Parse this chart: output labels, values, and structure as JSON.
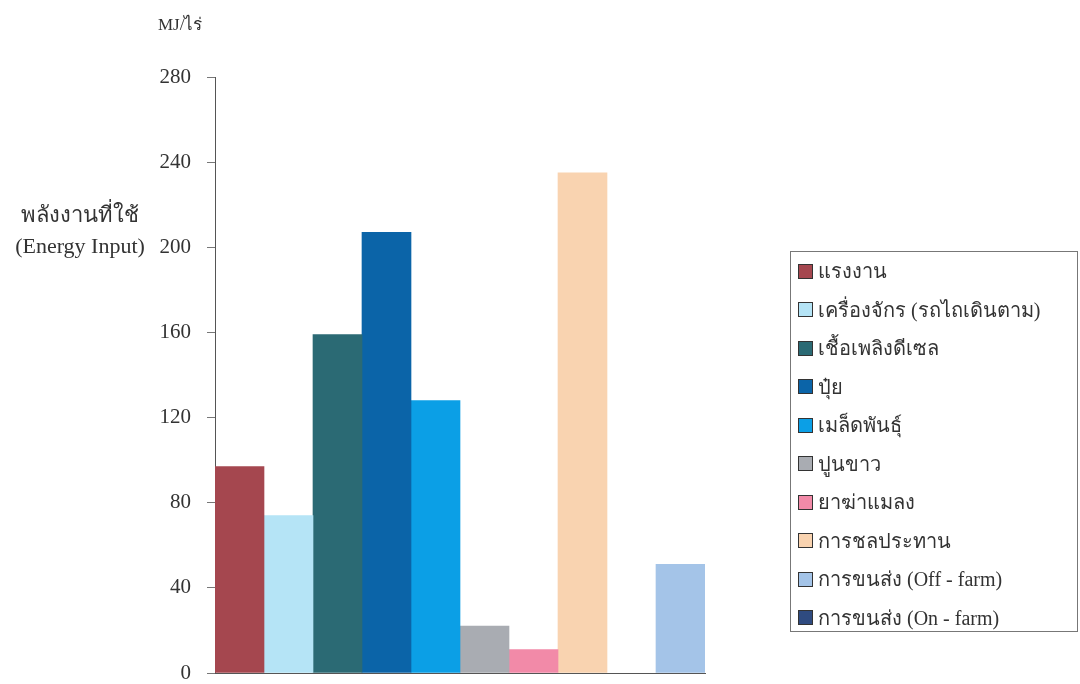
{
  "chart_data": {
    "type": "bar",
    "ylabel": "พลังงานที่ใช้ (Energy Input)",
    "annotations": [
      "MJ/ไร่"
    ],
    "categories": [
      null,
      null,
      null,
      null,
      null,
      null,
      null,
      null,
      null,
      null
    ],
    "series": [
      {
        "name": "แรงงาน",
        "color": "#a5474f",
        "values": [
          97,
          null,
          null,
          null,
          null,
          null,
          null,
          null,
          null,
          null
        ]
      },
      {
        "name": "เครื่องจักร (รถไถเดินตาม)",
        "color": "#b5e4f6",
        "values": [
          null,
          74,
          null,
          null,
          null,
          null,
          null,
          null,
          null,
          null
        ]
      },
      {
        "name": "เชื้อเพลิงดีเซล",
        "color": "#2b6a74",
        "values": [
          null,
          null,
          159,
          null,
          null,
          null,
          null,
          null,
          null,
          null
        ]
      },
      {
        "name": "ปุ๋ย",
        "color": "#0b64a8",
        "values": [
          null,
          null,
          null,
          207,
          null,
          null,
          null,
          null,
          null,
          null
        ]
      },
      {
        "name": "เมล็ดพันธุ์",
        "color": "#0b9fe6",
        "values": [
          null,
          null,
          null,
          null,
          128,
          null,
          null,
          null,
          null,
          null
        ]
      },
      {
        "name": "ปูนขาว",
        "color": "#a9acb2",
        "values": [
          null,
          null,
          null,
          null,
          null,
          22,
          null,
          null,
          null,
          null
        ]
      },
      {
        "name": "ยาฆ่าแมลง",
        "color": "#f28aa8",
        "values": [
          null,
          null,
          null,
          null,
          null,
          null,
          11,
          null,
          null,
          null
        ]
      },
      {
        "name": "การชลประทาน",
        "color": "#f9d3b0",
        "values": [
          null,
          null,
          null,
          null,
          null,
          null,
          null,
          235,
          null,
          null
        ]
      },
      {
        "name": "การขนส่ง (Off - farm)",
        "color": "#a4c4e8",
        "values": [
          null,
          null,
          null,
          null,
          null,
          null,
          null,
          null,
          null,
          51
        ]
      },
      {
        "name": "การขนส่ง (On - farm)",
        "color": "#2f4b80",
        "values": [
          null,
          null,
          null,
          null,
          null,
          null,
          null,
          null,
          null,
          null
        ]
      }
    ],
    "ylim": [
      0,
      280
    ],
    "yticks": [
      0,
      40,
      80,
      120,
      160,
      200,
      240,
      280
    ],
    "legend": "right"
  }
}
